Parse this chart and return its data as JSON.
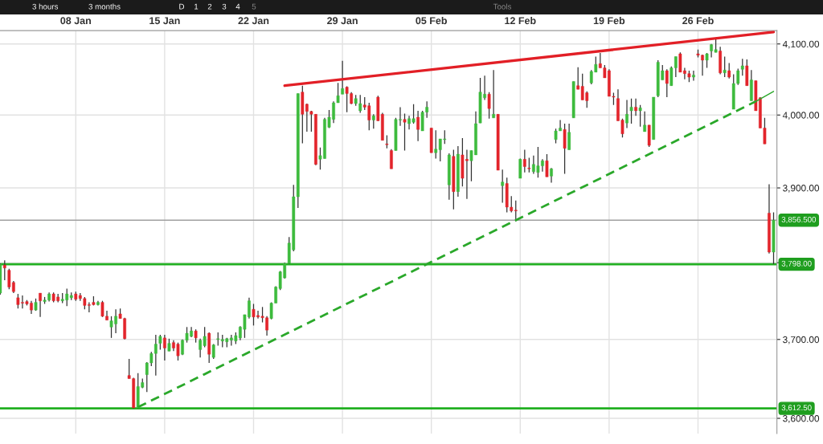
{
  "chart_data": {
    "type": "candlestick",
    "categories": [
      null,
      null,
      null,
      null,
      null,
      null,
      null,
      null,
      null,
      null,
      null,
      null,
      null,
      null,
      null,
      null,
      null,
      "08 Jan",
      null,
      null,
      null,
      null,
      null,
      null,
      null,
      null,
      null,
      null,
      null,
      null,
      null,
      null,
      null,
      null,
      null,
      null,
      null,
      "15 Jan",
      null,
      null,
      null,
      null,
      null,
      null,
      null,
      null,
      null,
      null,
      null,
      null,
      null,
      null,
      null,
      null,
      null,
      null,
      null,
      "22 Jan",
      null,
      null,
      null,
      null,
      null,
      null,
      null,
      null,
      null,
      null,
      null,
      null,
      null,
      null,
      null,
      null,
      null,
      null,
      null,
      "29 Jan",
      null,
      null,
      null,
      null,
      null,
      null,
      null,
      null,
      null,
      null,
      null,
      null,
      null,
      null,
      null,
      null,
      null,
      null,
      null,
      "05 Feb",
      null,
      null,
      null,
      null,
      null,
      null,
      null,
      null,
      null,
      null,
      null,
      null,
      null,
      null,
      null,
      null,
      null,
      null,
      null,
      "12 Feb",
      null,
      null,
      null,
      null,
      null,
      null,
      null,
      null,
      null,
      null,
      null,
      null,
      null,
      null,
      null,
      null,
      null,
      null,
      null,
      "19 Feb",
      null,
      null,
      null,
      null,
      null,
      null,
      null,
      null,
      null,
      null,
      null,
      null,
      null,
      null,
      null,
      null,
      null,
      null,
      null,
      "26 Feb",
      null,
      null,
      null,
      null,
      null,
      null,
      null,
      null,
      null,
      null,
      null,
      null,
      null,
      null,
      null,
      null,
      null
    ],
    "ohlc": [
      [
        3760,
        3799,
        3758,
        3798
      ],
      [
        3797,
        3803,
        3777,
        3793
      ],
      [
        3790,
        3792,
        3765,
        3768
      ],
      [
        3774,
        3776,
        3760,
        3762
      ],
      [
        3754,
        3759,
        3740,
        3745
      ],
      [
        3748,
        3757,
        3740,
        3747
      ],
      [
        3749,
        3751,
        3744,
        3746
      ],
      [
        3747,
        3750,
        3733,
        3738
      ],
      [
        3738,
        3753,
        3737,
        3748
      ],
      [
        3760,
        3760,
        3729,
        3750
      ],
      [
        3749,
        3755,
        3746,
        3751
      ],
      [
        3751,
        3761,
        3749,
        3759
      ],
      [
        3759,
        3761,
        3748,
        3750
      ],
      [
        3755,
        3759,
        3748,
        3750
      ],
      [
        3750,
        3760,
        3747,
        3752
      ],
      [
        3751,
        3766,
        3743,
        3759
      ],
      [
        3754,
        3761,
        3751,
        3757
      ],
      [
        3759,
        3762,
        3750,
        3752
      ],
      [
        3757,
        3760,
        3750,
        3753
      ],
      [
        3753,
        3755,
        3739,
        3744
      ],
      [
        3745,
        3748,
        3735,
        3744
      ],
      [
        3748,
        3756,
        3744,
        3745
      ],
      [
        3745,
        3750,
        3744,
        3748
      ],
      [
        3748,
        3750,
        3729,
        3730
      ],
      [
        3730,
        3737,
        3725,
        3725
      ],
      [
        3716,
        3730,
        3702,
        3724
      ],
      [
        3720,
        3739,
        3708,
        3730
      ],
      [
        3733,
        3740,
        3727,
        3727
      ],
      [
        3727,
        3728,
        3700,
        3701
      ],
      [
        3654,
        3675,
        3650,
        3650
      ],
      [
        3650,
        3651,
        3612.5,
        3613
      ],
      [
        3613,
        3657,
        3612.5,
        3640
      ],
      [
        3639,
        3650,
        3638,
        3645
      ],
      [
        3655,
        3671,
        3633,
        3670
      ],
      [
        3670,
        3684,
        3666,
        3682
      ],
      [
        3682,
        3706,
        3654,
        3694
      ],
      [
        3695,
        3706,
        3687,
        3704
      ],
      [
        3702,
        3706,
        3673,
        3689
      ],
      [
        3685,
        3701,
        3685,
        3695
      ],
      [
        3696,
        3699,
        3685,
        3689
      ],
      [
        3694,
        3696,
        3673,
        3679
      ],
      [
        3681,
        3700,
        3680,
        3699
      ],
      [
        3699,
        3716,
        3696,
        3708
      ],
      [
        3704,
        3716,
        3703,
        3711
      ],
      [
        3711,
        3713,
        3696,
        3702
      ],
      [
        3687,
        3701,
        3677,
        3699
      ],
      [
        3692,
        3716,
        3690,
        3704
      ],
      [
        3708,
        3709,
        3670,
        3681
      ],
      [
        3677,
        3694,
        3675,
        3693
      ],
      [
        3700,
        3709,
        3692,
        3701
      ],
      [
        3698,
        3706,
        3690,
        3700
      ],
      [
        3697,
        3702,
        3690,
        3701
      ],
      [
        3699,
        3706,
        3692,
        3702
      ],
      [
        3698,
        3709,
        3694,
        3705
      ],
      [
        3702,
        3717,
        3699,
        3716
      ],
      [
        3713,
        3732,
        3702,
        3732
      ],
      [
        3729,
        3754,
        3727,
        3750
      ],
      [
        3739,
        3746,
        3718,
        3729
      ],
      [
        3731,
        3737,
        3727,
        3729
      ],
      [
        3730,
        3742,
        3722,
        3728
      ],
      [
        3728,
        3730,
        3705,
        3712
      ],
      [
        3727,
        3748,
        3726,
        3747
      ],
      [
        3747,
        3769,
        3747,
        3768
      ],
      [
        3766,
        3789,
        3764,
        3788
      ],
      [
        3780,
        3800,
        3779,
        3799
      ],
      [
        3799,
        3834,
        3798,
        3826
      ],
      [
        3817,
        3904,
        3815,
        3888
      ],
      [
        3888,
        4030,
        3873,
        4030
      ],
      [
        4032,
        4041,
        3961,
        4001
      ],
      [
        4015,
        4016,
        3977,
        4005
      ],
      [
        4005,
        4006,
        3977,
        4001
      ],
      [
        4001,
        4001,
        3931,
        3932
      ],
      [
        3939,
        3955,
        3925,
        3944
      ],
      [
        3940,
        3996,
        3940,
        3994
      ],
      [
        3983,
        4007,
        3982,
        3997
      ],
      [
        3994,
        4019,
        3989,
        4017
      ],
      [
        4017,
        4045,
        4017,
        4027
      ],
      [
        4029,
        4076,
        4029,
        4037
      ],
      [
        4039,
        4040,
        4004,
        4030
      ],
      [
        4030,
        4032,
        4015,
        4016
      ],
      [
        4016,
        4028,
        4013,
        4023
      ],
      [
        4006,
        4028,
        4003,
        4016
      ],
      [
        4014,
        4025,
        4007,
        4011
      ],
      [
        4013,
        4017,
        3979,
        3993
      ],
      [
        3993,
        4001,
        3981,
        3999
      ],
      [
        4025,
        4027,
        3992,
        3992
      ],
      [
        4001,
        4003,
        3965,
        3965
      ],
      [
        3960,
        3972,
        3954,
        3959
      ],
      [
        3951,
        3953,
        3926,
        3926
      ],
      [
        3951,
        3996,
        3951,
        3994
      ],
      [
        3993,
        4011,
        3985,
        3994
      ],
      [
        3994,
        4002,
        3951,
        3990
      ],
      [
        3988,
        3999,
        3980,
        3995
      ],
      [
        3990,
        4015,
        3988,
        3995
      ],
      [
        3997,
        4006,
        3964,
        3980
      ],
      [
        3978,
        4006,
        3978,
        4004
      ],
      [
        4004,
        4019,
        3996,
        4011
      ],
      [
        3982,
        3982,
        3948,
        3948
      ],
      [
        3948,
        3979,
        3940,
        3953
      ],
      [
        3952,
        3967,
        3936,
        3967
      ],
      [
        3966,
        3979,
        3960,
        3967
      ],
      [
        3904,
        3947,
        3884,
        3945
      ],
      [
        3943,
        3952,
        3871,
        3895
      ],
      [
        3895,
        3957,
        3888,
        3946
      ],
      [
        3945,
        3968,
        3902,
        3913
      ],
      [
        3939,
        3952,
        3885,
        3937
      ],
      [
        3937,
        3951,
        3909,
        3951
      ],
      [
        3945,
        4005,
        3945,
        3988
      ],
      [
        3989,
        4052,
        3989,
        4032
      ],
      [
        4024,
        4055,
        4021,
        4029
      ],
      [
        4029,
        4032,
        3995,
        4009
      ],
      [
        3996,
        4063,
        3996,
        4001
      ],
      [
        4001,
        4001,
        3924,
        3924
      ],
      [
        3903,
        3925,
        3880,
        3908
      ],
      [
        3906,
        3914,
        3867,
        3874
      ],
      [
        3874,
        3889,
        3867,
        3869
      ],
      [
        3870,
        3883,
        3855,
        3869
      ],
      [
        3913,
        3940,
        3913,
        3939
      ],
      [
        3939,
        3952,
        3921,
        3929
      ],
      [
        3927,
        3941,
        3921,
        3926
      ],
      [
        3922,
        3944,
        3919,
        3932
      ],
      [
        3921,
        3956,
        3914,
        3930
      ],
      [
        3930,
        3939,
        3922,
        3937
      ],
      [
        3937,
        3946,
        3915,
        3915
      ],
      [
        3916,
        3927,
        3907,
        3926
      ],
      [
        3966,
        3981,
        3961,
        3978
      ],
      [
        3978,
        3993,
        3978,
        3982
      ],
      [
        3980,
        3988,
        3919,
        3954
      ],
      [
        3952,
        3988,
        3952,
        3976
      ],
      [
        3996,
        4047,
        3996,
        4047
      ],
      [
        4041,
        4067,
        4036,
        4036
      ],
      [
        4040,
        4058,
        4021,
        4021
      ],
      [
        4031,
        4033,
        4010,
        4020
      ],
      [
        4045,
        4063,
        4043,
        4061
      ],
      [
        4060,
        4082,
        4060,
        4071
      ],
      [
        4072,
        4087,
        4066,
        4066
      ],
      [
        4066,
        4070,
        4052,
        4052
      ],
      [
        4062,
        4064,
        4026,
        4026
      ],
      [
        4026,
        4031,
        4014,
        4025
      ],
      [
        4023,
        4036,
        3992,
        3992
      ],
      [
        3993,
        3995,
        3969,
        3974
      ],
      [
        3989,
        4021,
        3982,
        4001
      ],
      [
        4006,
        4023,
        3988,
        4011
      ],
      [
        4011,
        4023,
        3999,
        4006
      ],
      [
        4006,
        4014,
        3984,
        4010
      ],
      [
        3977,
        4005,
        3977,
        3986
      ],
      [
        3986,
        3986,
        3956,
        3958
      ],
      [
        3966,
        4025,
        3966,
        4025
      ],
      [
        4027,
        4077,
        4025,
        4074
      ],
      [
        4049,
        4070,
        4049,
        4062
      ],
      [
        4062,
        4064,
        4025,
        4044
      ],
      [
        4041,
        4068,
        4041,
        4066
      ],
      [
        4066,
        4082,
        4053,
        4082
      ],
      [
        4086,
        4088,
        4060,
        4060
      ],
      [
        4062,
        4066,
        4050,
        4058
      ],
      [
        4058,
        4062,
        4046,
        4053
      ],
      [
        4053,
        4062,
        4048,
        4056
      ],
      [
        4086,
        4092,
        4081,
        4084
      ],
      [
        4084,
        4085,
        4055,
        4077
      ],
      [
        4077,
        4087,
        4066,
        4086
      ],
      [
        4090,
        4100,
        4081,
        4099
      ],
      [
        4088,
        4107,
        4088,
        4092
      ],
      [
        4090,
        4096,
        4057,
        4059
      ],
      [
        4059,
        4082,
        4053,
        4063
      ],
      [
        4062,
        4073,
        4051,
        4053
      ],
      [
        4008,
        4057,
        4008,
        4044
      ],
      [
        4044,
        4065,
        4042,
        4062
      ],
      [
        4064,
        4079,
        4055,
        4069
      ],
      [
        4069,
        4078,
        4041,
        4041
      ],
      [
        4020,
        4063,
        4020,
        4049
      ],
      [
        4048,
        4048,
        4006,
        4006
      ],
      [
        4024,
        4025,
        3982,
        3982
      ],
      [
        3982,
        3996,
        3960,
        3960
      ],
      [
        3866,
        3905,
        3812,
        3814
      ],
      [
        3814,
        3867,
        3798,
        3856.5
      ]
    ],
    "colors": [
      "#3dbb3d",
      "#e3242b",
      "#e3242b",
      "#e3242b",
      "#e3242b",
      "#e3242b",
      "#e3242b",
      "#e3242b",
      "#3dbb3d",
      "#e3242b",
      "#3dbb3d",
      "#3dbb3d",
      "#e3242b",
      "#e3242b",
      "#3dbb3d",
      "#3dbb3d",
      "#3dbb3d",
      "#e3242b",
      "#e3242b",
      "#e3242b",
      "#e3242b",
      "#e3242b",
      "#3dbb3d",
      "#e3242b",
      "#e3242b",
      "#3dbb3d",
      "#3dbb3d",
      "#e3242b",
      "#e3242b",
      "#e3242b",
      "#e3242b",
      "#3dbb3d",
      "#3dbb3d",
      "#3dbb3d",
      "#3dbb3d",
      "#3dbb3d",
      "#3dbb3d",
      "#e3242b",
      "#3dbb3d",
      "#e3242b",
      "#e3242b",
      "#3dbb3d",
      "#3dbb3d",
      "#3dbb3d",
      "#e3242b",
      "#3dbb3d",
      "#3dbb3d",
      "#e3242b",
      "#3dbb3d",
      "#3dbb3d",
      "#3dbb3d",
      "#3dbb3d",
      "#3dbb3d",
      "#3dbb3d",
      "#3dbb3d",
      "#3dbb3d",
      "#3dbb3d",
      "#e3242b",
      "#e3242b",
      "#e3242b",
      "#e3242b",
      "#3dbb3d",
      "#3dbb3d",
      "#3dbb3d",
      "#3dbb3d",
      "#3dbb3d",
      "#3dbb3d",
      "#3dbb3d",
      "#e3242b",
      "#e3242b",
      "#e3242b",
      "#e3242b",
      "#3dbb3d",
      "#3dbb3d",
      "#3dbb3d",
      "#3dbb3d",
      "#3dbb3d",
      "#3dbb3d",
      "#e3242b",
      "#e3242b",
      "#3dbb3d",
      "#3dbb3d",
      "#e3242b",
      "#e3242b",
      "#3dbb3d",
      "#e3242b",
      "#e3242b",
      "#e3242b",
      "#e3242b",
      "#3dbb3d",
      "#3dbb3d",
      "#e3242b",
      "#3dbb3d",
      "#3dbb3d",
      "#e3242b",
      "#3dbb3d",
      "#3dbb3d",
      "#e3242b",
      "#3dbb3d",
      "#3dbb3d",
      "#3dbb3d",
      "#3dbb3d",
      "#e3242b",
      "#3dbb3d",
      "#e3242b",
      "#e3242b",
      "#3dbb3d",
      "#3dbb3d",
      "#3dbb3d",
      "#3dbb3d",
      "#e3242b",
      "#3dbb3d",
      "#e3242b",
      "#3dbb3d",
      "#e3242b",
      "#e3242b",
      "#e3242b",
      "#3dbb3d",
      "#e3242b",
      "#e3242b",
      "#3dbb3d",
      "#3dbb3d",
      "#3dbb3d",
      "#e3242b",
      "#3dbb3d",
      "#3dbb3d",
      "#3dbb3d",
      "#e3242b",
      "#3dbb3d",
      "#3dbb3d",
      "#e3242b",
      "#e3242b",
      "#e3242b",
      "#3dbb3d",
      "#3dbb3d",
      "#e3242b",
      "#e3242b",
      "#e3242b",
      "#e3242b",
      "#e3242b",
      "#e3242b",
      "#3dbb3d",
      "#3dbb3d",
      "#e3242b",
      "#3dbb3d",
      "#3dbb3d",
      "#e3242b",
      "#3dbb3d",
      "#3dbb3d",
      "#3dbb3d",
      "#e3242b",
      "#3dbb3d",
      "#3dbb3d",
      "#e3242b",
      "#e3242b",
      "#e3242b",
      "#3dbb3d",
      "#e3242b",
      "#e3242b",
      "#3dbb3d",
      "#3dbb3d",
      "#3dbb3d",
      "#e3242b",
      "#3dbb3d",
      "#e3242b",
      "#3dbb3d",
      "#3dbb3d",
      "#3dbb3d",
      "#e3242b",
      "#3dbb3d",
      "#e3242b",
      "#e3242b",
      "#e3242b",
      "#e3242b",
      "#3dbb3d"
    ],
    "series": [
      {
        "type": "line",
        "color": "#e21f26",
        "line_style": "solid",
        "values": [
          null,
          null,
          null,
          null,
          null,
          null,
          null,
          null,
          null,
          null,
          null,
          null,
          null,
          null,
          null,
          null,
          null,
          null,
          null,
          null,
          null,
          null,
          null,
          null,
          null,
          null,
          null,
          null,
          null,
          null,
          null,
          null,
          null,
          null,
          null,
          null,
          null,
          null,
          null,
          null,
          null,
          null,
          null,
          null,
          null,
          null,
          null,
          null,
          null,
          null,
          null,
          null,
          null,
          null,
          null,
          null,
          null,
          null,
          null,
          null,
          null,
          null,
          null,
          null,
          4041,
          null,
          null,
          null,
          null,
          null,
          null,
          null,
          null,
          null,
          null,
          null,
          null,
          null,
          null,
          null,
          null,
          null,
          null,
          null,
          null,
          null,
          null,
          null,
          null,
          null,
          null,
          null,
          null,
          null,
          null,
          null,
          null,
          null,
          null,
          null,
          null,
          null,
          null,
          null,
          null,
          null,
          null,
          null,
          null,
          null,
          null,
          null,
          null,
          null,
          null,
          null,
          null,
          null,
          null,
          null,
          null,
          null,
          null,
          null,
          null,
          null,
          null,
          null,
          null,
          null,
          null,
          null,
          null,
          null,
          null,
          null,
          null,
          null,
          null,
          null,
          null,
          null,
          null,
          null,
          null,
          null,
          null,
          null,
          null,
          null,
          null,
          null,
          null,
          null,
          null,
          null,
          null,
          null,
          null,
          null,
          null,
          null,
          null,
          null,
          null,
          null,
          null,
          null,
          null,
          null,
          null,
          null,
          null,
          null,
          4117
        ]
      },
      {
        "type": "line",
        "color": "#2aa82a",
        "line_style": "dashed",
        "values": [
          null,
          null,
          null,
          null,
          null,
          null,
          null,
          null,
          null,
          null,
          null,
          null,
          null,
          null,
          null,
          null,
          null,
          null,
          null,
          null,
          null,
          null,
          null,
          null,
          null,
          null,
          null,
          null,
          null,
          null,
          null,
          3614,
          null,
          null,
          null,
          null,
          null,
          null,
          null,
          null,
          null,
          null,
          null,
          null,
          null,
          null,
          null,
          null,
          null,
          null,
          null,
          null,
          null,
          null,
          null,
          null,
          null,
          null,
          null,
          null,
          null,
          null,
          null,
          null,
          null,
          null,
          null,
          null,
          null,
          null,
          null,
          null,
          null,
          null,
          null,
          null,
          null,
          null,
          null,
          null,
          null,
          null,
          null,
          null,
          null,
          null,
          null,
          null,
          null,
          null,
          null,
          null,
          null,
          null,
          null,
          null,
          null,
          null,
          null,
          null,
          null,
          null,
          null,
          null,
          null,
          null,
          null,
          null,
          null,
          null,
          null,
          null,
          null,
          null,
          null,
          null,
          null,
          null,
          null,
          null,
          null,
          null,
          null,
          null,
          null,
          null,
          null,
          null,
          null,
          null,
          null,
          null,
          null,
          null,
          null,
          null,
          null,
          null,
          null,
          null,
          null,
          null,
          null,
          null,
          null,
          null,
          null,
          null,
          null,
          null,
          null,
          null,
          null,
          null,
          null,
          null,
          null,
          null,
          null,
          null,
          null,
          null,
          null,
          null,
          null,
          null,
          null,
          null,
          null,
          null,
          4019,
          null,
          null,
          null,
          null
        ]
      },
      {
        "type": "line",
        "color": "#2aa82a",
        "line_style": "solid",
        "values": [
          null,
          null,
          null,
          null,
          null,
          null,
          null,
          null,
          null,
          null,
          null,
          null,
          null,
          null,
          null,
          null,
          null,
          null,
          null,
          null,
          null,
          null,
          null,
          null,
          null,
          null,
          null,
          null,
          null,
          null,
          null,
          null,
          null,
          null,
          null,
          null,
          null,
          null,
          null,
          null,
          null,
          null,
          null,
          null,
          null,
          null,
          null,
          null,
          null,
          null,
          null,
          null,
          null,
          null,
          null,
          null,
          null,
          null,
          null,
          null,
          null,
          null,
          null,
          null,
          null,
          null,
          null,
          null,
          null,
          null,
          null,
          null,
          null,
          null,
          null,
          null,
          null,
          null,
          null,
          null,
          null,
          null,
          null,
          null,
          null,
          null,
          null,
          null,
          null,
          null,
          null,
          null,
          null,
          null,
          null,
          null,
          null,
          null,
          null,
          null,
          null,
          null,
          null,
          null,
          null,
          null,
          null,
          null,
          null,
          null,
          null,
          null,
          null,
          null,
          null,
          null,
          null,
          null,
          null,
          null,
          null,
          null,
          null,
          null,
          null,
          null,
          null,
          null,
          null,
          null,
          null,
          null,
          null,
          null,
          null,
          null,
          null,
          null,
          null,
          null,
          null,
          null,
          null,
          null,
          null,
          null,
          null,
          null,
          null,
          null,
          null,
          null,
          null,
          null,
          null,
          null,
          null,
          null,
          null,
          null,
          null,
          null,
          null,
          null,
          null,
          null,
          null,
          null,
          null,
          null,
          4019,
          null,
          null,
          null,
          4033
        ]
      }
    ],
    "log": true,
    "ylim": [
      3581,
      4119
    ],
    "yticks": [
      {
        "value": 3600,
        "label": "3,600.00"
      },
      {
        "value": 3700,
        "label": "3,700.00"
      },
      {
        "value": 3800,
        "label": null
      },
      {
        "value": 3900,
        "label": "3,900.00"
      },
      {
        "value": 4000,
        "label": "4,000.00"
      },
      {
        "value": 4100,
        "label": "4,100.00"
      }
    ],
    "ref_lines": [
      {
        "axis": "y",
        "value": 3856.5,
        "label": "3,856.500",
        "color": "#a0a0a0"
      },
      {
        "axis": "y",
        "value": 3798,
        "label": "3,798.00",
        "color": "#22b022"
      },
      {
        "axis": "y",
        "value": 3612.5,
        "label": "3,612.50",
        "color": "#22b022"
      }
    ],
    "grid": true,
    "annotations": [
      "3 hours",
      "3 months",
      "D",
      "1",
      "2",
      "3",
      "4",
      "5",
      "Tools"
    ]
  }
}
